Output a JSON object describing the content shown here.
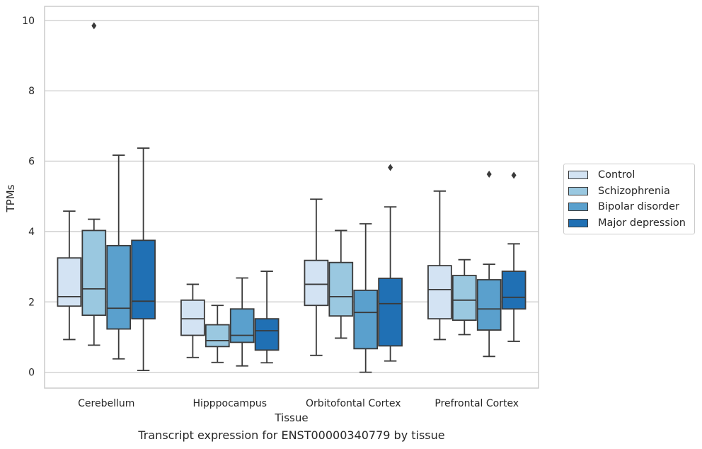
{
  "chart_data": {
    "type": "box",
    "title": "",
    "xlabel": "Tissue",
    "ylabel": "TPMs",
    "caption": "Transcript expression for ENST00000340779 by tissue",
    "ylim": [
      -0.45,
      10.4
    ],
    "yticks": [
      0,
      2,
      4,
      6,
      8,
      10
    ],
    "grid": "horizontal",
    "legend_position": "right",
    "categories": [
      "Cerebellum",
      "Hipppocampus",
      "Orbitofontal Cortex",
      "Prefrontal Cortex"
    ],
    "series": [
      {
        "name": "Control",
        "color": "#d3e3f3",
        "boxes": [
          {
            "whislo": 0.93,
            "q1": 1.88,
            "med": 2.15,
            "q3": 3.25,
            "whishi": 4.58,
            "fliers": []
          },
          {
            "whislo": 0.42,
            "q1": 1.05,
            "med": 1.52,
            "q3": 2.05,
            "whishi": 2.5,
            "fliers": []
          },
          {
            "whislo": 0.48,
            "q1": 1.9,
            "med": 2.5,
            "q3": 3.18,
            "whishi": 4.92,
            "fliers": []
          },
          {
            "whislo": 0.93,
            "q1": 1.52,
            "med": 2.35,
            "q3": 3.03,
            "whishi": 5.15,
            "fliers": []
          }
        ]
      },
      {
        "name": "Schizophrenia",
        "color": "#9ac8e0",
        "boxes": [
          {
            "whislo": 0.77,
            "q1": 1.62,
            "med": 2.37,
            "q3": 4.03,
            "whishi": 4.35,
            "fliers": [
              9.85
            ]
          },
          {
            "whislo": 0.28,
            "q1": 0.73,
            "med": 0.9,
            "q3": 1.35,
            "whishi": 1.9,
            "fliers": []
          },
          {
            "whislo": 0.97,
            "q1": 1.6,
            "med": 2.15,
            "q3": 3.12,
            "whishi": 4.03,
            "fliers": []
          },
          {
            "whislo": 1.07,
            "q1": 1.48,
            "med": 2.05,
            "q3": 2.75,
            "whishi": 3.2,
            "fliers": []
          }
        ]
      },
      {
        "name": "Bipolar disorder",
        "color": "#5aa0cd",
        "boxes": [
          {
            "whislo": 0.38,
            "q1": 1.23,
            "med": 1.82,
            "q3": 3.6,
            "whishi": 6.17,
            "fliers": []
          },
          {
            "whislo": 0.18,
            "q1": 0.85,
            "med": 1.05,
            "q3": 1.8,
            "whishi": 2.68,
            "fliers": []
          },
          {
            "whislo": 0.0,
            "q1": 0.67,
            "med": 1.7,
            "q3": 2.33,
            "whishi": 4.22,
            "fliers": []
          },
          {
            "whislo": 0.45,
            "q1": 1.2,
            "med": 1.8,
            "q3": 2.63,
            "whishi": 3.07,
            "fliers": [
              5.63
            ]
          }
        ]
      },
      {
        "name": "Major depression",
        "color": "#2070b4",
        "boxes": [
          {
            "whislo": 0.05,
            "q1": 1.52,
            "med": 2.02,
            "q3": 3.75,
            "whishi": 6.37,
            "fliers": []
          },
          {
            "whislo": 0.27,
            "q1": 0.63,
            "med": 1.18,
            "q3": 1.52,
            "whishi": 2.87,
            "fliers": []
          },
          {
            "whislo": 0.32,
            "q1": 0.75,
            "med": 1.95,
            "q3": 2.67,
            "whishi": 4.7,
            "fliers": [
              5.82
            ]
          },
          {
            "whislo": 0.88,
            "q1": 1.8,
            "med": 2.13,
            "q3": 2.87,
            "whishi": 3.65,
            "fliers": [
              5.6
            ]
          }
        ]
      }
    ]
  }
}
